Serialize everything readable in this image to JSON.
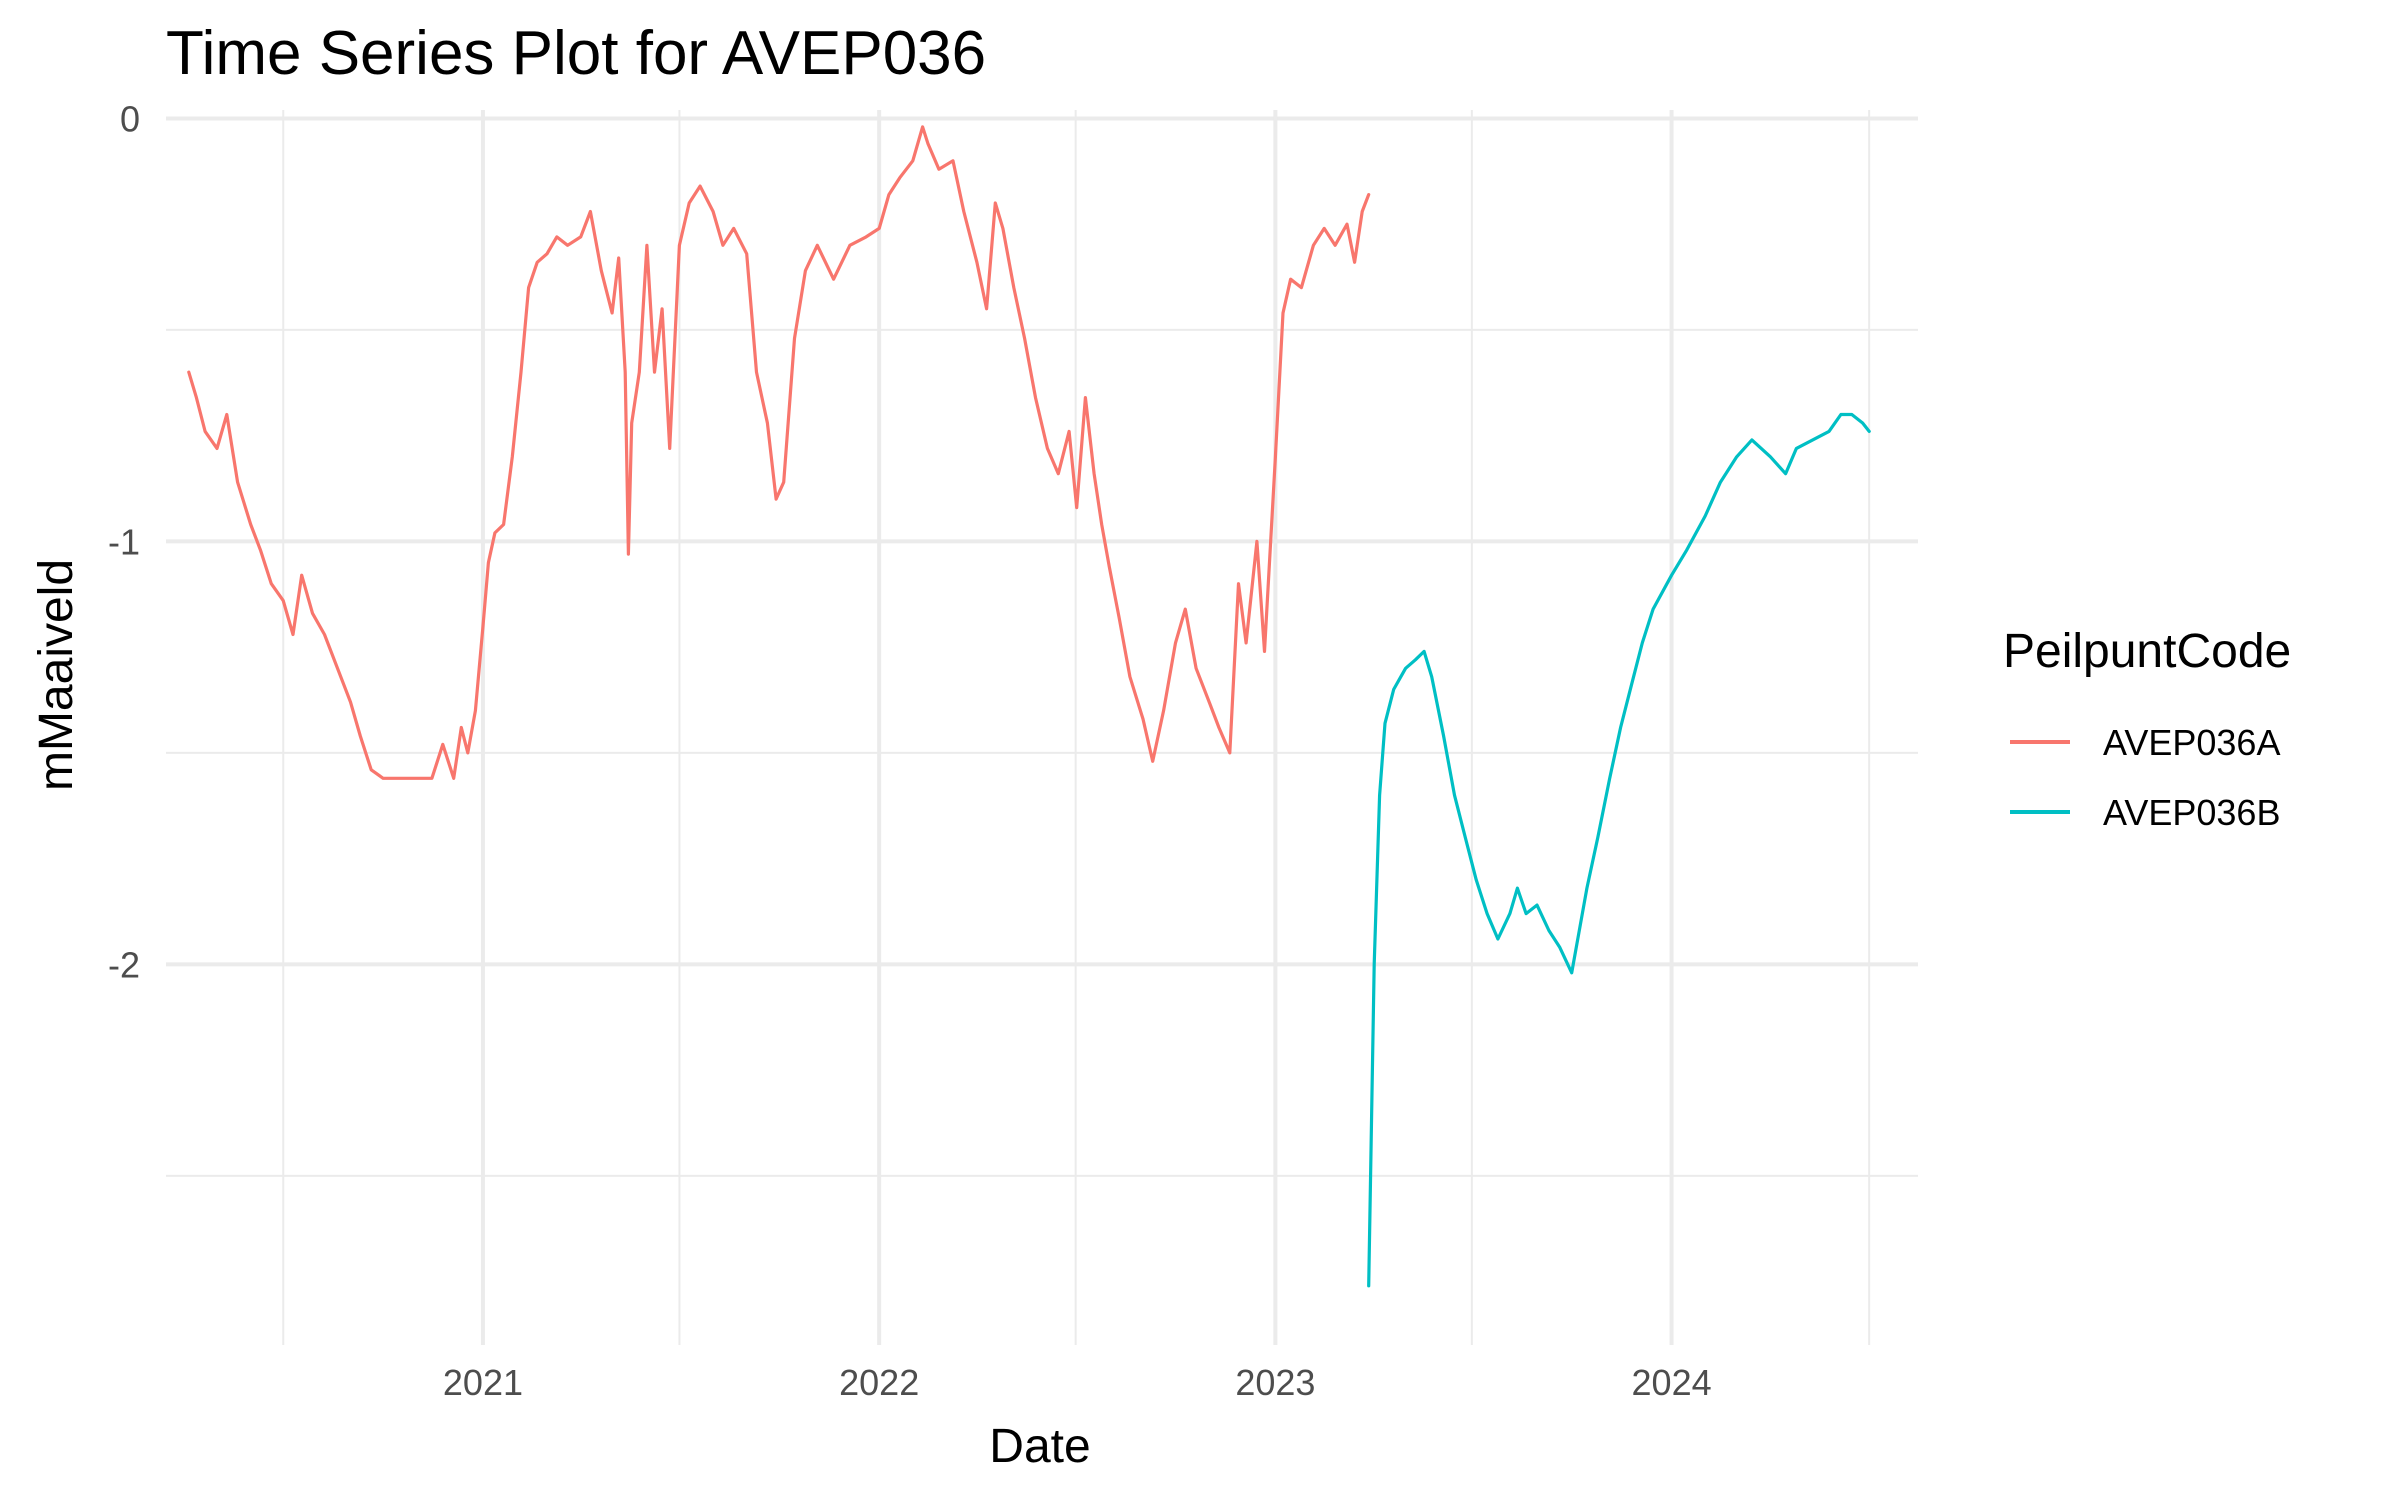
{
  "chart_data": {
    "type": "line",
    "title": "Time Series Plot for AVEP036",
    "xlabel": "Date",
    "ylabel": "mMaaiveld",
    "x_ticks": [
      "2021",
      "2022",
      "2023",
      "2024"
    ],
    "y_ticks": [
      "0",
      "-1",
      "-2"
    ],
    "xlim": [
      "2020-03-15",
      "2024-08-15"
    ],
    "ylim": [
      -2.9,
      0.02
    ],
    "grid": true,
    "legend": {
      "title": "PeilpuntCode",
      "position": "right"
    },
    "series": [
      {
        "name": "AVEP036A",
        "color": "#F8766D",
        "points": [
          [
            "2020-04-05",
            -0.6
          ],
          [
            "2020-04-12",
            -0.66
          ],
          [
            "2020-04-20",
            -0.74
          ],
          [
            "2020-05-01",
            -0.78
          ],
          [
            "2020-05-10",
            -0.7
          ],
          [
            "2020-05-20",
            -0.86
          ],
          [
            "2020-06-01",
            -0.96
          ],
          [
            "2020-06-10",
            -1.02
          ],
          [
            "2020-06-20",
            -1.1
          ],
          [
            "2020-07-01",
            -1.14
          ],
          [
            "2020-07-10",
            -1.22
          ],
          [
            "2020-07-18",
            -1.08
          ],
          [
            "2020-07-28",
            -1.17
          ],
          [
            "2020-08-08",
            -1.22
          ],
          [
            "2020-08-20",
            -1.3
          ],
          [
            "2020-09-01",
            -1.38
          ],
          [
            "2020-09-10",
            -1.46
          ],
          [
            "2020-09-20",
            -1.54
          ],
          [
            "2020-10-01",
            -1.56
          ],
          [
            "2020-10-15",
            -1.56
          ],
          [
            "2020-11-01",
            -1.56
          ],
          [
            "2020-11-15",
            -1.56
          ],
          [
            "2020-11-25",
            -1.48
          ],
          [
            "2020-12-05",
            -1.56
          ],
          [
            "2020-12-12",
            -1.44
          ],
          [
            "2020-12-18",
            -1.5
          ],
          [
            "2020-12-25",
            -1.4
          ],
          [
            "2021-01-01",
            -1.2
          ],
          [
            "2021-01-06",
            -1.05
          ],
          [
            "2021-01-12",
            -0.98
          ],
          [
            "2021-01-20",
            -0.96
          ],
          [
            "2021-01-28",
            -0.8
          ],
          [
            "2021-02-05",
            -0.6
          ],
          [
            "2021-02-12",
            -0.4
          ],
          [
            "2021-02-20",
            -0.34
          ],
          [
            "2021-03-01",
            -0.32
          ],
          [
            "2021-03-10",
            -0.28
          ],
          [
            "2021-03-20",
            -0.3
          ],
          [
            "2021-04-01",
            -0.28
          ],
          [
            "2021-04-10",
            -0.22
          ],
          [
            "2021-04-20",
            -0.36
          ],
          [
            "2021-04-30",
            -0.46
          ],
          [
            "2021-05-06",
            -0.33
          ],
          [
            "2021-05-12",
            -0.6
          ],
          [
            "2021-05-15",
            -1.03
          ],
          [
            "2021-05-18",
            -0.72
          ],
          [
            "2021-05-25",
            -0.6
          ],
          [
            "2021-06-01",
            -0.3
          ],
          [
            "2021-06-08",
            -0.6
          ],
          [
            "2021-06-15",
            -0.45
          ],
          [
            "2021-06-22",
            -0.78
          ],
          [
            "2021-07-01",
            -0.3
          ],
          [
            "2021-07-10",
            -0.2
          ],
          [
            "2021-07-20",
            -0.16
          ],
          [
            "2021-08-01",
            -0.22
          ],
          [
            "2021-08-10",
            -0.3
          ],
          [
            "2021-08-20",
            -0.26
          ],
          [
            "2021-09-01",
            -0.32
          ],
          [
            "2021-09-10",
            -0.6
          ],
          [
            "2021-09-20",
            -0.72
          ],
          [
            "2021-09-28",
            -0.9
          ],
          [
            "2021-10-05",
            -0.86
          ],
          [
            "2021-10-15",
            -0.52
          ],
          [
            "2021-10-25",
            -0.36
          ],
          [
            "2021-11-05",
            -0.3
          ],
          [
            "2021-11-20",
            -0.38
          ],
          [
            "2021-12-05",
            -0.3
          ],
          [
            "2021-12-20",
            -0.28
          ],
          [
            "2022-01-01",
            -0.26
          ],
          [
            "2022-01-10",
            -0.18
          ],
          [
            "2022-01-20",
            -0.14
          ],
          [
            "2022-02-01",
            -0.1
          ],
          [
            "2022-02-10",
            -0.02
          ],
          [
            "2022-02-15",
            -0.06
          ],
          [
            "2022-02-25",
            -0.12
          ],
          [
            "2022-03-10",
            -0.1
          ],
          [
            "2022-03-20",
            -0.22
          ],
          [
            "2022-04-01",
            -0.34
          ],
          [
            "2022-04-10",
            -0.45
          ],
          [
            "2022-04-18",
            -0.2
          ],
          [
            "2022-04-25",
            -0.26
          ],
          [
            "2022-05-05",
            -0.4
          ],
          [
            "2022-05-15",
            -0.52
          ],
          [
            "2022-05-25",
            -0.66
          ],
          [
            "2022-06-05",
            -0.78
          ],
          [
            "2022-06-15",
            -0.84
          ],
          [
            "2022-06-25",
            -0.74
          ],
          [
            "2022-07-02",
            -0.92
          ],
          [
            "2022-07-10",
            -0.66
          ],
          [
            "2022-07-18",
            -0.84
          ],
          [
            "2022-07-25",
            -0.96
          ],
          [
            "2022-08-01",
            -1.06
          ],
          [
            "2022-08-10",
            -1.18
          ],
          [
            "2022-08-20",
            -1.32
          ],
          [
            "2022-09-01",
            -1.42
          ],
          [
            "2022-09-10",
            -1.52
          ],
          [
            "2022-09-20",
            -1.4
          ],
          [
            "2022-10-01",
            -1.24
          ],
          [
            "2022-10-10",
            -1.16
          ],
          [
            "2022-10-20",
            -1.3
          ],
          [
            "2022-11-01",
            -1.38
          ],
          [
            "2022-11-10",
            -1.44
          ],
          [
            "2022-11-20",
            -1.5
          ],
          [
            "2022-11-28",
            -1.1
          ],
          [
            "2022-12-05",
            -1.24
          ],
          [
            "2022-12-15",
            -1.0
          ],
          [
            "2022-12-22",
            -1.26
          ],
          [
            "2023-01-01",
            -0.8
          ],
          [
            "2023-01-08",
            -0.46
          ],
          [
            "2023-01-15",
            -0.38
          ],
          [
            "2023-01-25",
            -0.4
          ],
          [
            "2023-02-05",
            -0.3
          ],
          [
            "2023-02-15",
            -0.26
          ],
          [
            "2023-02-25",
            -0.3
          ],
          [
            "2023-03-08",
            -0.25
          ],
          [
            "2023-03-15",
            -0.34
          ],
          [
            "2023-03-22",
            -0.22
          ],
          [
            "2023-03-28",
            -0.18
          ]
        ]
      },
      {
        "name": "AVEP036B",
        "color": "#00BFC4",
        "points": [
          [
            "2023-03-28",
            -2.76
          ],
          [
            "2023-04-02",
            -2.0
          ],
          [
            "2023-04-07",
            -1.6
          ],
          [
            "2023-04-12",
            -1.43
          ],
          [
            "2023-04-20",
            -1.35
          ],
          [
            "2023-05-01",
            -1.3
          ],
          [
            "2023-05-10",
            -1.28
          ],
          [
            "2023-05-18",
            -1.26
          ],
          [
            "2023-05-25",
            -1.32
          ],
          [
            "2023-06-05",
            -1.46
          ],
          [
            "2023-06-15",
            -1.6
          ],
          [
            "2023-06-25",
            -1.7
          ],
          [
            "2023-07-05",
            -1.8
          ],
          [
            "2023-07-15",
            -1.88
          ],
          [
            "2023-07-25",
            -1.94
          ],
          [
            "2023-08-05",
            -1.88
          ],
          [
            "2023-08-12",
            -1.82
          ],
          [
            "2023-08-20",
            -1.88
          ],
          [
            "2023-08-30",
            -1.86
          ],
          [
            "2023-09-10",
            -1.92
          ],
          [
            "2023-09-20",
            -1.96
          ],
          [
            "2023-10-01",
            -2.02
          ],
          [
            "2023-10-08",
            -1.92
          ],
          [
            "2023-10-15",
            -1.82
          ],
          [
            "2023-10-25",
            -1.7
          ],
          [
            "2023-11-05",
            -1.56
          ],
          [
            "2023-11-15",
            -1.44
          ],
          [
            "2023-11-25",
            -1.34
          ],
          [
            "2023-12-05",
            -1.24
          ],
          [
            "2023-12-15",
            -1.16
          ],
          [
            "2024-01-01",
            -1.08
          ],
          [
            "2024-01-15",
            -1.02
          ],
          [
            "2024-02-01",
            -0.94
          ],
          [
            "2024-02-15",
            -0.86
          ],
          [
            "2024-03-01",
            -0.8
          ],
          [
            "2024-03-15",
            -0.76
          ],
          [
            "2024-04-01",
            -0.8
          ],
          [
            "2024-04-15",
            -0.84
          ],
          [
            "2024-04-25",
            -0.78
          ],
          [
            "2024-05-10",
            -0.76
          ],
          [
            "2024-05-25",
            -0.74
          ],
          [
            "2024-06-05",
            -0.7
          ],
          [
            "2024-06-15",
            -0.7
          ],
          [
            "2024-06-25",
            -0.72
          ],
          [
            "2024-07-01",
            -0.74
          ]
        ]
      }
    ]
  }
}
